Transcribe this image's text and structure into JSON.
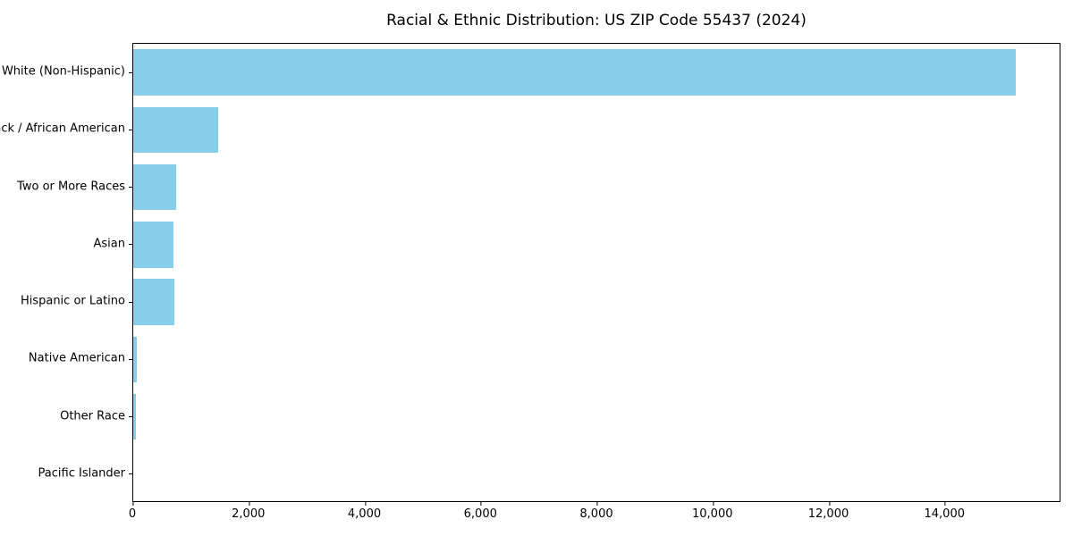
{
  "title": "Racial & Ethnic Distribution: US ZIP Code 55437 (2024)",
  "chart_data": {
    "type": "bar",
    "orientation": "horizontal",
    "title": "Racial & Ethnic Distribution: US ZIP Code 55437 (2024)",
    "xlabel": "",
    "ylabel": "",
    "categories": [
      "White (Non-Hispanic)",
      "Black / African American",
      "Two or More Races",
      "Asian",
      "Hispanic or Latino",
      "Native American",
      "Other Race",
      "Pacific Islander"
    ],
    "values": [
      15240,
      1460,
      745,
      690,
      705,
      60,
      45,
      0
    ],
    "bar_color": "#87CEEB",
    "xlim": [
      0,
      16000
    ],
    "x_ticks": [
      {
        "value": 0,
        "label": "0"
      },
      {
        "value": 2000,
        "label": "2,000"
      },
      {
        "value": 4000,
        "label": "4,000"
      },
      {
        "value": 6000,
        "label": "6,000"
      },
      {
        "value": 8000,
        "label": "8,000"
      },
      {
        "value": 10000,
        "label": "10,000"
      },
      {
        "value": 12000,
        "label": "12,000"
      },
      {
        "value": 14000,
        "label": "14,000"
      }
    ],
    "grid": false,
    "legend": "none",
    "background_color": "#ffffff",
    "text_color": "#000000",
    "spine_color": "#000000"
  }
}
